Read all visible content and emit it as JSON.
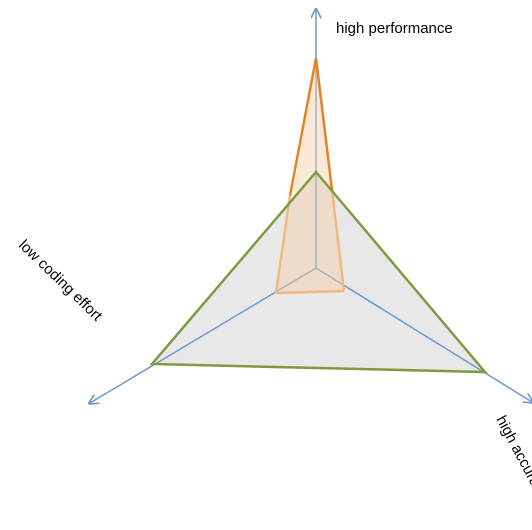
{
  "colors": {
    "axis": "#6b98cc",
    "orange": "#e88226",
    "orange_light": "#f0b87e",
    "green": "#7f9a3f",
    "fill": "#e6e6e6"
  },
  "axes": [
    {
      "key": "performance",
      "label": "high performance"
    },
    {
      "key": "coding",
      "label": "low coding effort"
    },
    {
      "key": "accuracy",
      "label": "high accuracy"
    }
  ]
}
